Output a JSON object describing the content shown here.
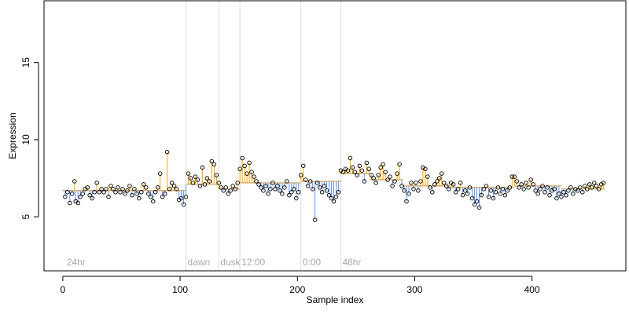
{
  "chart_data": {
    "type": "scatter",
    "title": "",
    "xlabel": "Sample index",
    "ylabel": "Expression",
    "xlim": [
      -16,
      480
    ],
    "ylim": [
      1.5,
      19
    ],
    "x_ticks": [
      0,
      100,
      200,
      300,
      400
    ],
    "y_ticks": [
      5,
      10,
      15
    ],
    "baseline": 7.0,
    "colors": {
      "above": "#ffa500",
      "below": "#6495ed",
      "points": "#000000",
      "vlines": "#dcdcdc",
      "vlabels": "#a9a9a9"
    },
    "vlines": [
      {
        "x": 2,
        "label": "24hr"
      },
      {
        "x": 105,
        "label": "dawn"
      },
      {
        "x": 133,
        "label": "dusk"
      },
      {
        "x": 151,
        "label": "12:00"
      },
      {
        "x": 203,
        "label": "0:00"
      },
      {
        "x": 237,
        "label": "48hr"
      }
    ],
    "segments": [
      {
        "x0": 0,
        "x1": 105,
        "level": 6.7
      },
      {
        "x0": 105,
        "x1": 133,
        "level": 7.1
      },
      {
        "x0": 133,
        "x1": 151,
        "level": 6.8
      },
      {
        "x0": 151,
        "x1": 203,
        "level": 7.2
      },
      {
        "x0": 203,
        "x1": 237,
        "level": 7.3
      },
      {
        "x0": 237,
        "x1": 262,
        "level": 7.8
      },
      {
        "x0": 262,
        "x1": 290,
        "level": 7.4
      },
      {
        "x0": 290,
        "x1": 330,
        "level": 7.0
      },
      {
        "x0": 330,
        "x1": 385,
        "level": 6.9
      },
      {
        "x0": 385,
        "x1": 425,
        "level": 7.0
      },
      {
        "x0": 425,
        "x1": 462,
        "level": 6.8
      }
    ],
    "points": [
      {
        "x": 2,
        "y": 6.3
      },
      {
        "x": 4,
        "y": 6.6
      },
      {
        "x": 6,
        "y": 5.9
      },
      {
        "x": 8,
        "y": 6.5
      },
      {
        "x": 10,
        "y": 7.3
      },
      {
        "x": 11,
        "y": 6.0
      },
      {
        "x": 13,
        "y": 5.9
      },
      {
        "x": 15,
        "y": 6.3
      },
      {
        "x": 17,
        "y": 6.5
      },
      {
        "x": 19,
        "y": 6.8
      },
      {
        "x": 21,
        "y": 6.9
      },
      {
        "x": 23,
        "y": 6.4
      },
      {
        "x": 25,
        "y": 6.2
      },
      {
        "x": 27,
        "y": 6.6
      },
      {
        "x": 29,
        "y": 7.2
      },
      {
        "x": 31,
        "y": 6.6
      },
      {
        "x": 33,
        "y": 6.8
      },
      {
        "x": 35,
        "y": 6.6
      },
      {
        "x": 37,
        "y": 6.8
      },
      {
        "x": 39,
        "y": 6.3
      },
      {
        "x": 41,
        "y": 7.0
      },
      {
        "x": 43,
        "y": 6.8
      },
      {
        "x": 45,
        "y": 6.6
      },
      {
        "x": 47,
        "y": 6.9
      },
      {
        "x": 49,
        "y": 6.6
      },
      {
        "x": 51,
        "y": 6.8
      },
      {
        "x": 53,
        "y": 6.5
      },
      {
        "x": 55,
        "y": 6.7
      },
      {
        "x": 57,
        "y": 7.0
      },
      {
        "x": 59,
        "y": 6.4
      },
      {
        "x": 61,
        "y": 6.8
      },
      {
        "x": 63,
        "y": 6.5
      },
      {
        "x": 65,
        "y": 6.2
      },
      {
        "x": 67,
        "y": 6.6
      },
      {
        "x": 69,
        "y": 7.1
      },
      {
        "x": 71,
        "y": 6.9
      },
      {
        "x": 73,
        "y": 6.5
      },
      {
        "x": 75,
        "y": 6.3
      },
      {
        "x": 77,
        "y": 6.0
      },
      {
        "x": 79,
        "y": 6.6
      },
      {
        "x": 81,
        "y": 6.9
      },
      {
        "x": 83,
        "y": 7.8
      },
      {
        "x": 85,
        "y": 6.3
      },
      {
        "x": 87,
        "y": 6.5
      },
      {
        "x": 89,
        "y": 9.2
      },
      {
        "x": 91,
        "y": 6.8
      },
      {
        "x": 93,
        "y": 7.2
      },
      {
        "x": 95,
        "y": 7.0
      },
      {
        "x": 97,
        "y": 6.8
      },
      {
        "x": 99,
        "y": 6.1
      },
      {
        "x": 101,
        "y": 6.2
      },
      {
        "x": 103,
        "y": 5.8
      },
      {
        "x": 105,
        "y": 6.3
      },
      {
        "x": 107,
        "y": 7.8
      },
      {
        "x": 109,
        "y": 7.5
      },
      {
        "x": 111,
        "y": 7.2
      },
      {
        "x": 113,
        "y": 7.6
      },
      {
        "x": 115,
        "y": 7.4
      },
      {
        "x": 117,
        "y": 7.0
      },
      {
        "x": 119,
        "y": 8.2
      },
      {
        "x": 121,
        "y": 7.1
      },
      {
        "x": 123,
        "y": 7.5
      },
      {
        "x": 125,
        "y": 7.3
      },
      {
        "x": 127,
        "y": 8.6
      },
      {
        "x": 129,
        "y": 8.4
      },
      {
        "x": 131,
        "y": 7.7
      },
      {
        "x": 133,
        "y": 7.2
      },
      {
        "x": 135,
        "y": 6.9
      },
      {
        "x": 137,
        "y": 6.7
      },
      {
        "x": 139,
        "y": 6.9
      },
      {
        "x": 141,
        "y": 6.5
      },
      {
        "x": 143,
        "y": 6.7
      },
      {
        "x": 145,
        "y": 7.0
      },
      {
        "x": 147,
        "y": 6.8
      },
      {
        "x": 149,
        "y": 7.2
      },
      {
        "x": 151,
        "y": 8.1
      },
      {
        "x": 153,
        "y": 8.8
      },
      {
        "x": 155,
        "y": 8.3
      },
      {
        "x": 157,
        "y": 7.8
      },
      {
        "x": 159,
        "y": 8.5
      },
      {
        "x": 161,
        "y": 7.9
      },
      {
        "x": 163,
        "y": 7.6
      },
      {
        "x": 165,
        "y": 7.3
      },
      {
        "x": 167,
        "y": 7.1
      },
      {
        "x": 169,
        "y": 6.9
      },
      {
        "x": 171,
        "y": 6.7
      },
      {
        "x": 173,
        "y": 7.0
      },
      {
        "x": 175,
        "y": 6.5
      },
      {
        "x": 177,
        "y": 6.8
      },
      {
        "x": 179,
        "y": 7.2
      },
      {
        "x": 181,
        "y": 6.8
      },
      {
        "x": 183,
        "y": 7.0
      },
      {
        "x": 185,
        "y": 6.7
      },
      {
        "x": 187,
        "y": 6.5
      },
      {
        "x": 189,
        "y": 6.9
      },
      {
        "x": 191,
        "y": 7.3
      },
      {
        "x": 193,
        "y": 6.4
      },
      {
        "x": 195,
        "y": 6.6
      },
      {
        "x": 197,
        "y": 6.8
      },
      {
        "x": 199,
        "y": 6.2
      },
      {
        "x": 201,
        "y": 6.6
      },
      {
        "x": 203,
        "y": 7.7
      },
      {
        "x": 205,
        "y": 8.3
      },
      {
        "x": 207,
        "y": 7.4
      },
      {
        "x": 209,
        "y": 7.0
      },
      {
        "x": 211,
        "y": 7.3
      },
      {
        "x": 213,
        "y": 6.8
      },
      {
        "x": 215,
        "y": 4.8
      },
      {
        "x": 217,
        "y": 7.2
      },
      {
        "x": 219,
        "y": 6.9
      },
      {
        "x": 221,
        "y": 6.6
      },
      {
        "x": 223,
        "y": 7.0
      },
      {
        "x": 225,
        "y": 6.7
      },
      {
        "x": 227,
        "y": 6.4
      },
      {
        "x": 229,
        "y": 6.2
      },
      {
        "x": 231,
        "y": 6.0
      },
      {
        "x": 233,
        "y": 6.3
      },
      {
        "x": 235,
        "y": 6.6
      },
      {
        "x": 237,
        "y": 8.0
      },
      {
        "x": 239,
        "y": 7.9
      },
      {
        "x": 241,
        "y": 8.1
      },
      {
        "x": 243,
        "y": 8.0
      },
      {
        "x": 245,
        "y": 8.8
      },
      {
        "x": 247,
        "y": 8.2
      },
      {
        "x": 249,
        "y": 7.9
      },
      {
        "x": 251,
        "y": 7.7
      },
      {
        "x": 253,
        "y": 8.3
      },
      {
        "x": 255,
        "y": 8.0
      },
      {
        "x": 257,
        "y": 7.3
      },
      {
        "x": 259,
        "y": 8.5
      },
      {
        "x": 261,
        "y": 8.1
      },
      {
        "x": 263,
        "y": 7.7
      },
      {
        "x": 265,
        "y": 7.5
      },
      {
        "x": 267,
        "y": 7.2
      },
      {
        "x": 269,
        "y": 7.7
      },
      {
        "x": 271,
        "y": 8.2
      },
      {
        "x": 273,
        "y": 8.4
      },
      {
        "x": 275,
        "y": 7.9
      },
      {
        "x": 277,
        "y": 7.4
      },
      {
        "x": 279,
        "y": 7.6
      },
      {
        "x": 281,
        "y": 7.0
      },
      {
        "x": 283,
        "y": 7.3
      },
      {
        "x": 285,
        "y": 7.8
      },
      {
        "x": 287,
        "y": 8.4
      },
      {
        "x": 289,
        "y": 7.0
      },
      {
        "x": 291,
        "y": 6.7
      },
      {
        "x": 293,
        "y": 6.0
      },
      {
        "x": 295,
        "y": 6.5
      },
      {
        "x": 297,
        "y": 7.2
      },
      {
        "x": 299,
        "y": 6.8
      },
      {
        "x": 301,
        "y": 7.2
      },
      {
        "x": 303,
        "y": 6.7
      },
      {
        "x": 305,
        "y": 7.3
      },
      {
        "x": 307,
        "y": 8.2
      },
      {
        "x": 309,
        "y": 8.1
      },
      {
        "x": 311,
        "y": 7.6
      },
      {
        "x": 313,
        "y": 6.9
      },
      {
        "x": 315,
        "y": 6.6
      },
      {
        "x": 317,
        "y": 7.1
      },
      {
        "x": 319,
        "y": 7.3
      },
      {
        "x": 321,
        "y": 7.5
      },
      {
        "x": 323,
        "y": 7.8
      },
      {
        "x": 325,
        "y": 7.2
      },
      {
        "x": 327,
        "y": 7.0
      },
      {
        "x": 329,
        "y": 6.8
      },
      {
        "x": 331,
        "y": 7.2
      },
      {
        "x": 333,
        "y": 7.1
      },
      {
        "x": 335,
        "y": 6.6
      },
      {
        "x": 337,
        "y": 6.8
      },
      {
        "x": 339,
        "y": 7.2
      },
      {
        "x": 341,
        "y": 6.4
      },
      {
        "x": 343,
        "y": 6.7
      },
      {
        "x": 345,
        "y": 6.5
      },
      {
        "x": 347,
        "y": 6.9
      },
      {
        "x": 349,
        "y": 6.2
      },
      {
        "x": 351,
        "y": 5.8
      },
      {
        "x": 353,
        "y": 6.0
      },
      {
        "x": 355,
        "y": 5.6
      },
      {
        "x": 357,
        "y": 6.4
      },
      {
        "x": 359,
        "y": 6.8
      },
      {
        "x": 361,
        "y": 7.0
      },
      {
        "x": 363,
        "y": 6.3
      },
      {
        "x": 365,
        "y": 6.7
      },
      {
        "x": 367,
        "y": 6.2
      },
      {
        "x": 369,
        "y": 6.6
      },
      {
        "x": 371,
        "y": 6.9
      },
      {
        "x": 373,
        "y": 6.5
      },
      {
        "x": 375,
        "y": 6.8
      },
      {
        "x": 377,
        "y": 6.4
      },
      {
        "x": 379,
        "y": 6.7
      },
      {
        "x": 381,
        "y": 6.9
      },
      {
        "x": 383,
        "y": 7.6
      },
      {
        "x": 385,
        "y": 7.6
      },
      {
        "x": 387,
        "y": 7.3
      },
      {
        "x": 389,
        "y": 6.9
      },
      {
        "x": 391,
        "y": 7.1
      },
      {
        "x": 393,
        "y": 6.8
      },
      {
        "x": 395,
        "y": 7.2
      },
      {
        "x": 397,
        "y": 6.9
      },
      {
        "x": 399,
        "y": 7.4
      },
      {
        "x": 401,
        "y": 7.1
      },
      {
        "x": 403,
        "y": 6.7
      },
      {
        "x": 405,
        "y": 6.5
      },
      {
        "x": 407,
        "y": 6.8
      },
      {
        "x": 409,
        "y": 7.0
      },
      {
        "x": 411,
        "y": 6.6
      },
      {
        "x": 413,
        "y": 6.9
      },
      {
        "x": 415,
        "y": 6.4
      },
      {
        "x": 417,
        "y": 6.7
      },
      {
        "x": 419,
        "y": 6.8
      },
      {
        "x": 421,
        "y": 6.2
      },
      {
        "x": 423,
        "y": 6.5
      },
      {
        "x": 425,
        "y": 6.3
      },
      {
        "x": 427,
        "y": 6.6
      },
      {
        "x": 429,
        "y": 6.4
      },
      {
        "x": 431,
        "y": 6.7
      },
      {
        "x": 433,
        "y": 6.9
      },
      {
        "x": 435,
        "y": 6.5
      },
      {
        "x": 437,
        "y": 6.8
      },
      {
        "x": 439,
        "y": 6.7
      },
      {
        "x": 441,
        "y": 6.9
      },
      {
        "x": 443,
        "y": 6.6
      },
      {
        "x": 445,
        "y": 7.0
      },
      {
        "x": 447,
        "y": 6.8
      },
      {
        "x": 449,
        "y": 7.1
      },
      {
        "x": 451,
        "y": 6.9
      },
      {
        "x": 453,
        "y": 7.2
      },
      {
        "x": 455,
        "y": 7.0
      },
      {
        "x": 457,
        "y": 6.8
      },
      {
        "x": 459,
        "y": 7.1
      },
      {
        "x": 461,
        "y": 7.2
      }
    ]
  }
}
